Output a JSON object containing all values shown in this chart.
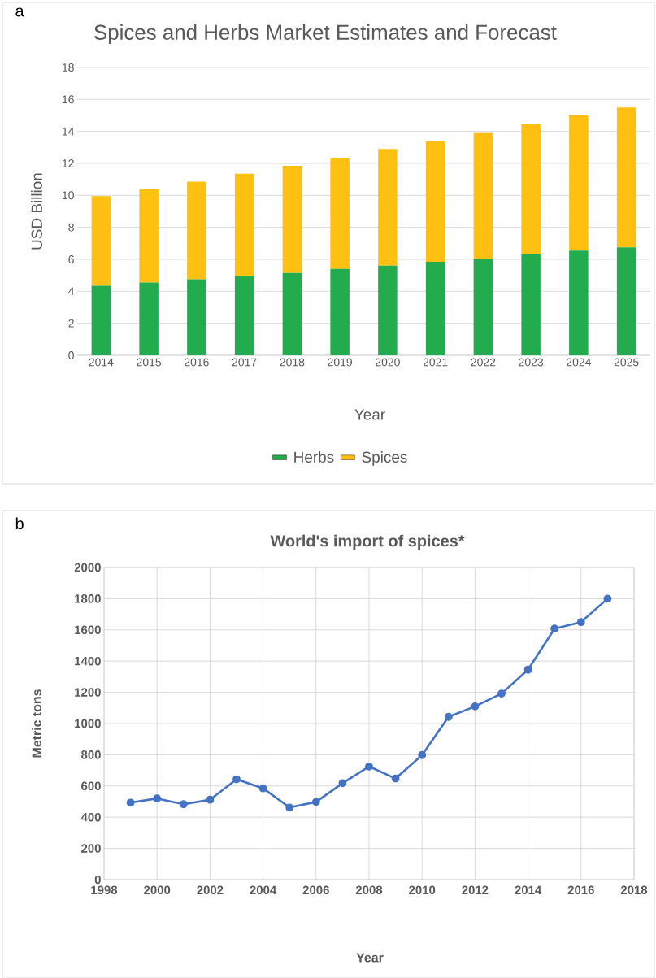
{
  "chart_data": [
    {
      "type": "bar",
      "stacked": true,
      "title": "Spices and Herbs Market Estimates and Forecast",
      "xlabel": "Year",
      "ylabel": "USD Billion",
      "categories": [
        "2014",
        "2015",
        "2016",
        "2017",
        "2018",
        "2019",
        "2020",
        "2021",
        "2022",
        "2023",
        "2024",
        "2025"
      ],
      "series": [
        {
          "name": "Herbs",
          "color": "#22ac4e",
          "values": [
            4.35,
            4.55,
            4.75,
            4.95,
            5.15,
            5.4,
            5.6,
            5.85,
            6.05,
            6.3,
            6.55,
            6.75
          ]
        },
        {
          "name": "Spices",
          "color": "#ffc012",
          "values": [
            5.6,
            5.85,
            6.1,
            6.4,
            6.7,
            6.95,
            7.3,
            7.55,
            7.9,
            8.15,
            8.45,
            8.75
          ]
        }
      ],
      "ylim": [
        0,
        18
      ],
      "yticks": [
        0,
        2,
        4,
        6,
        8,
        10,
        12,
        14,
        16,
        18
      ],
      "grid": "y",
      "legend": "bottom",
      "annotations": [
        "a"
      ]
    },
    {
      "type": "line",
      "title": "World's import of spices*",
      "xlabel": "Year",
      "ylabel": "Metric tons",
      "x": [
        1999,
        2000,
        2001,
        2002,
        2003,
        2004,
        2005,
        2006,
        2007,
        2008,
        2009,
        2010,
        2011,
        2012,
        2013,
        2014,
        2015,
        2016,
        2017
      ],
      "series": [
        {
          "color": "#4472c4",
          "values": [
            493,
            520,
            483,
            512,
            643,
            585,
            462,
            498,
            618,
            725,
            648,
            798,
            1043,
            1110,
            1192,
            1345,
            1608,
            1650,
            1800
          ]
        }
      ],
      "xlim": [
        1998,
        2018
      ],
      "xticks": [
        1998,
        2000,
        2002,
        2004,
        2006,
        2008,
        2010,
        2012,
        2014,
        2016,
        2018
      ],
      "ylim": [
        0,
        2000
      ],
      "yticks": [
        0,
        200,
        400,
        600,
        800,
        1000,
        1200,
        1400,
        1600,
        1800,
        2000
      ],
      "grid": true,
      "marker": "circle",
      "line_style": "solid",
      "annotations": [
        "b"
      ]
    }
  ]
}
